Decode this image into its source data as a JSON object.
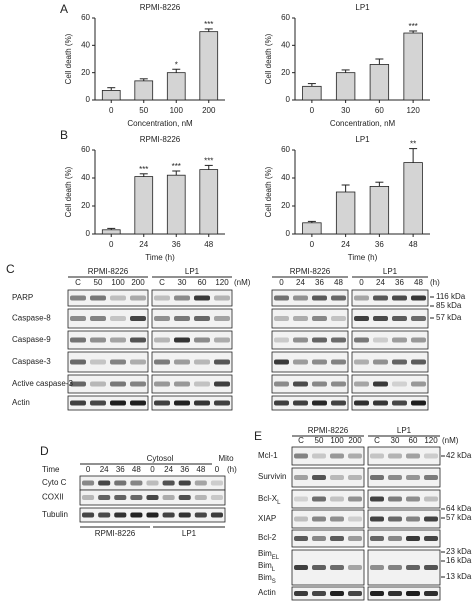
{
  "panel_labels": [
    "A",
    "B",
    "C",
    "D",
    "E"
  ],
  "chart_data": [
    {
      "type": "bar",
      "title": "RPMI-8226",
      "ylabel": "Cell death (%)",
      "xlabel": "Concentration, nM",
      "categories": [
        "0",
        "50",
        "100",
        "200"
      ],
      "values": [
        7,
        14,
        20,
        50
      ],
      "errors": [
        2,
        1.5,
        2.5,
        2
      ],
      "significance": [
        null,
        null,
        "*",
        "***"
      ],
      "ylim": [
        0,
        60
      ],
      "yticks": [
        0,
        20,
        40,
        60
      ],
      "color": "#d4d4d4"
    },
    {
      "type": "bar",
      "title": "LP1",
      "ylabel": "Cell death (%)",
      "xlabel": "Concentration, nM",
      "categories": [
        "0",
        "30",
        "60",
        "120"
      ],
      "values": [
        10,
        20,
        26,
        49
      ],
      "errors": [
        2,
        2,
        4,
        1.5
      ],
      "significance": [
        null,
        null,
        null,
        "***"
      ],
      "ylim": [
        0,
        60
      ],
      "yticks": [
        0,
        20,
        40,
        60
      ],
      "color": "#d4d4d4"
    },
    {
      "type": "bar",
      "title": "RPMI-8226",
      "ylabel": "Cell death (%)",
      "xlabel": "Time (h)",
      "categories": [
        "0",
        "24",
        "36",
        "48"
      ],
      "values": [
        3,
        41,
        42,
        46
      ],
      "errors": [
        1,
        2,
        3,
        3
      ],
      "significance": [
        null,
        "***",
        "***",
        "***"
      ],
      "ylim": [
        0,
        60
      ],
      "yticks": [
        0,
        20,
        40,
        60
      ],
      "color": "#d4d4d4"
    },
    {
      "type": "bar",
      "title": "LP1",
      "ylabel": "Cell death (%)",
      "xlabel": "Time (h)",
      "categories": [
        "0",
        "24",
        "36",
        "48"
      ],
      "values": [
        8,
        30,
        34,
        51
      ],
      "errors": [
        1,
        5,
        3,
        10
      ],
      "significance": [
        null,
        null,
        null,
        "**"
      ],
      "ylim": [
        0,
        60
      ],
      "yticks": [
        0,
        20,
        40,
        60
      ],
      "color": "#d4d4d4"
    }
  ],
  "blots": {
    "c_left": {
      "groups": [
        {
          "label": "RPMI-8226",
          "lanes": [
            "C",
            "50",
            "100",
            "200"
          ]
        },
        {
          "label": "LP1",
          "lanes": [
            "C",
            "30",
            "60",
            "120"
          ]
        }
      ],
      "unit": "(nM)",
      "rows": [
        "PARP",
        "Caspase-8",
        "Caspase-9",
        "Caspase-3",
        "Active caspase-3",
        "Actin"
      ]
    },
    "c_right": {
      "groups": [
        {
          "label": "RPMI-8226",
          "lanes": [
            "0",
            "24",
            "36",
            "48"
          ]
        },
        {
          "label": "LP1",
          "lanes": [
            "0",
            "24",
            "36",
            "48"
          ]
        }
      ],
      "unit": "(h)",
      "markers": [
        "116 kDa",
        "85 kDa",
        "57 kDa"
      ]
    },
    "d": {
      "fraction": "Cytosol",
      "mito": "Mito",
      "time": "Time",
      "lanes": [
        "0",
        "24",
        "36",
        "48",
        "0",
        "24",
        "36",
        "48",
        "0"
      ],
      "unit": "(h)",
      "rows": [
        "Cyto C",
        "COXII",
        "Tubulin"
      ],
      "cell_lines": [
        "RPMI-8226",
        "LP1"
      ]
    },
    "e": {
      "groups": [
        {
          "label": "RPMI-8226",
          "lanes": [
            "C",
            "50",
            "100",
            "200"
          ]
        },
        {
          "label": "LP1",
          "lanes": [
            "C",
            "30",
            "60",
            "120"
          ]
        }
      ],
      "unit": "(nM)",
      "rows": [
        {
          "text": "Mcl-1"
        },
        {
          "text": "Survivin"
        },
        {
          "text": "Bcl-X",
          "sub": "L"
        },
        {
          "text": "XIAP"
        },
        {
          "text": "Bcl-2"
        },
        {
          "text": "Bim",
          "sub": "EL"
        },
        {
          "text": "Bim",
          "sub": "L"
        },
        {
          "text": "Bim",
          "sub": "S"
        },
        {
          "text": "Actin"
        }
      ],
      "markers": [
        "42 kDa",
        "64 kDa",
        "57 kDa",
        "23 kDa",
        "16 kDa",
        "13 kDa"
      ]
    }
  }
}
